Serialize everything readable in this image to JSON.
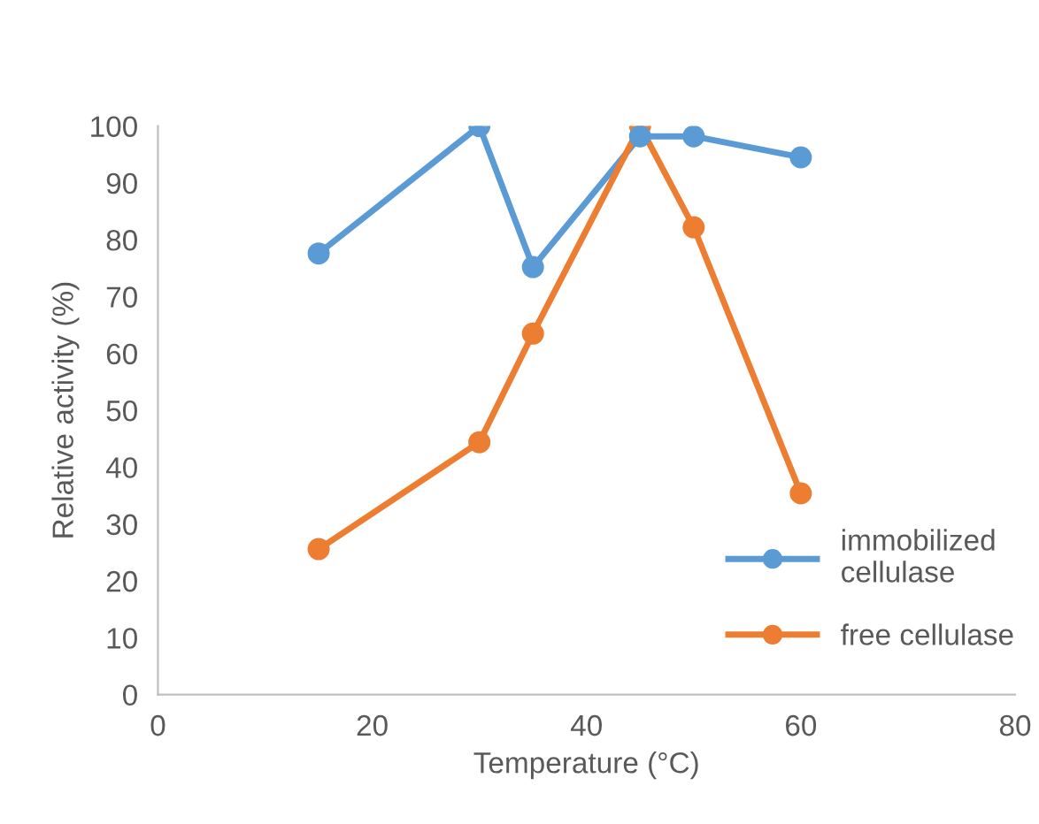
{
  "chart_data": {
    "type": "line",
    "xlabel": "Temperature (°C)",
    "ylabel": "Relative activity (%)",
    "x": [
      15,
      30,
      35,
      45,
      50,
      60
    ],
    "series": [
      {
        "name": "immobilized\ncellulase",
        "color": "#5b9bd5",
        "values": [
          77.6,
          100,
          75.2,
          98.2,
          98.2,
          94.5
        ]
      },
      {
        "name": "free cellulase",
        "color": "#ed7d31",
        "values": [
          25.6,
          44.4,
          63.5,
          100,
          82.2,
          35.4
        ]
      }
    ],
    "xlim": [
      0,
      80
    ],
    "xticks": [
      0,
      20,
      40,
      60,
      80
    ],
    "ylim": [
      0,
      100
    ],
    "yticks": [
      0,
      10,
      20,
      30,
      40,
      50,
      60,
      70,
      80,
      90,
      100
    ],
    "marker": "circle",
    "line_style": "solid",
    "grid": false,
    "legend": "bottom right"
  }
}
